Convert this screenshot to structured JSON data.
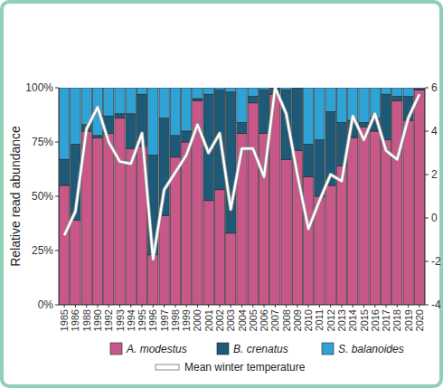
{
  "chart_data": {
    "type": "bar",
    "stacked": true,
    "legend": "bottom",
    "y_label": "Relative read abundance",
    "categories": [
      "1985",
      "1986",
      "1988",
      "1990",
      "1992",
      "1993",
      "1994",
      "1995",
      "1996",
      "1997",
      "1998",
      "1999",
      "2000",
      "2001",
      "2002",
      "2003",
      "2004",
      "2005",
      "2006",
      "2007",
      "2008",
      "2009",
      "2010",
      "2011",
      "2012",
      "2013",
      "2014",
      "2015",
      "2016",
      "2017",
      "2018",
      "2019",
      "2020"
    ],
    "series": [
      {
        "name": "A. modestus",
        "color": "#c8588a",
        "values": [
          55,
          39,
          80,
          77,
          79,
          86,
          72,
          73,
          23,
          41,
          68,
          75,
          94,
          48,
          53,
          33,
          79,
          93,
          79,
          97,
          67,
          71,
          59,
          50,
          55,
          64,
          77,
          82,
          80,
          76,
          94,
          85,
          99
        ]
      },
      {
        "name": "B. crenatus",
        "color": "#1e5a78",
        "values": [
          12,
          35,
          3,
          1,
          8,
          2,
          16,
          24,
          46,
          45,
          10,
          5,
          1,
          49,
          46,
          65,
          5,
          3,
          20,
          3,
          32,
          29,
          15,
          26,
          34,
          20,
          8,
          2,
          6,
          21,
          2,
          11,
          0.5
        ]
      },
      {
        "name": "S. balanoides",
        "color": "#2fa3d6",
        "values": [
          33,
          26,
          17,
          22,
          13,
          12,
          12,
          3,
          31,
          14,
          22,
          20,
          5,
          3,
          1,
          2,
          16,
          4,
          1,
          0,
          1,
          0,
          26,
          24,
          11,
          16,
          15,
          16,
          14,
          3,
          4,
          4,
          0.5
        ]
      },
      {
        "name": "Mean winter temperature",
        "type": "line",
        "axis": "y2",
        "color": "#ffffff",
        "values": [
          -0.8,
          0.3,
          4.1,
          5.1,
          3.5,
          2.6,
          2.5,
          3.9,
          -1.9,
          1.3,
          2.1,
          2.9,
          4.3,
          3.0,
          3.9,
          0.4,
          3.2,
          3.2,
          1.9,
          6.0,
          4.8,
          2.0,
          -0.5,
          0.8,
          2.0,
          1.7,
          4.7,
          3.6,
          4.8,
          3.1,
          2.7,
          4.6,
          5.7
        ]
      }
    ],
    "ylim": [
      0,
      100
    ],
    "yticks": [
      {
        "value": 0,
        "label": "0%"
      },
      {
        "value": 25,
        "label": "25%"
      },
      {
        "value": 50,
        "label": "50%"
      },
      {
        "value": 75,
        "label": "75%"
      },
      {
        "value": 100,
        "label": "100%"
      }
    ],
    "y2lim": [
      -4,
      6
    ],
    "y2ticks": [
      -4,
      -2,
      0,
      2,
      4,
      6
    ]
  }
}
